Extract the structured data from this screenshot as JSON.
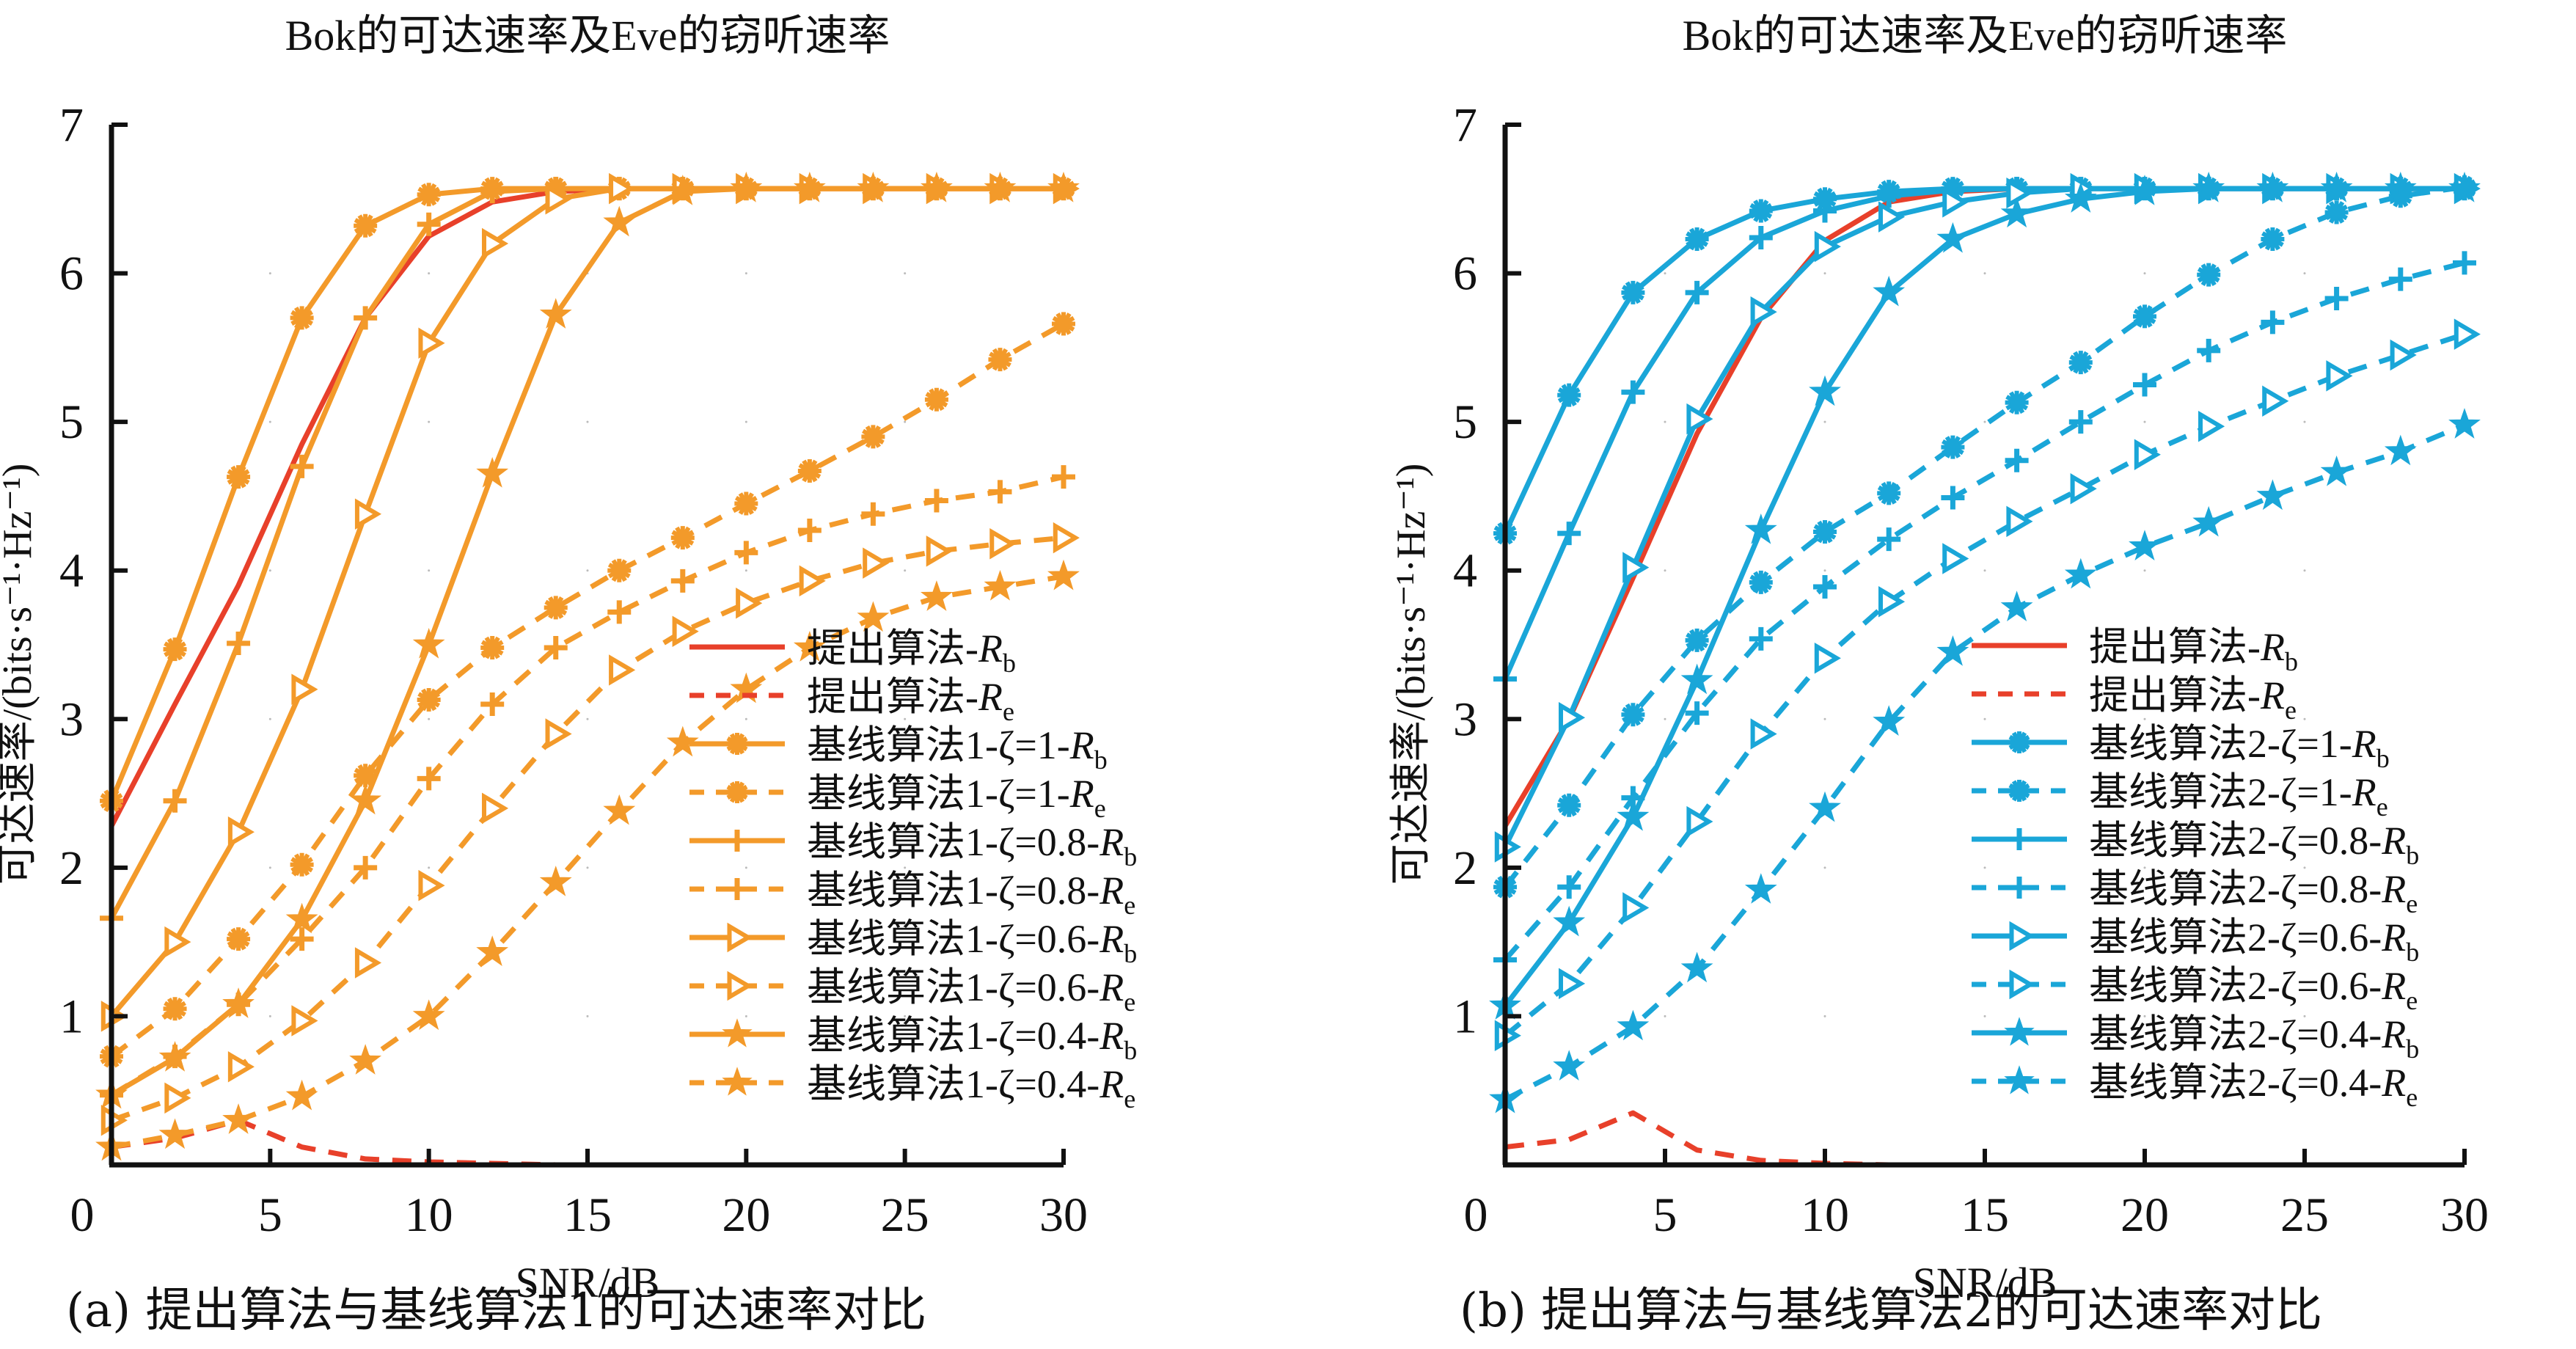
{
  "chart_data": [
    {
      "type": "line",
      "title": "Bok的可达速率及Eve的窃听速率",
      "xlabel": "SNR/dB",
      "ylabel": "可达速率/(bits·s⁻¹·Hz⁻¹)",
      "caption": "(a) 提出算法与基线算法1的可达速率对比",
      "xlim": [
        0,
        30
      ],
      "ylim": [
        0,
        7
      ],
      "xticks": [
        0,
        5,
        10,
        15,
        20,
        25,
        30
      ],
      "yticks": [
        1,
        2,
        3,
        4,
        5,
        6,
        7
      ],
      "ytick_labels": [
        "1",
        "2",
        "3",
        "4",
        "5",
        "6",
        "7"
      ],
      "xtick_labels": [
        "0",
        "5",
        "10",
        "15",
        "20",
        "25",
        "30"
      ],
      "origin_label": "0",
      "grid": "dotted-minor",
      "legend_position": "bottom-right",
      "x": [
        0,
        2,
        4,
        6,
        8,
        10,
        12,
        14,
        16,
        18,
        20,
        22,
        24,
        26,
        28,
        30
      ],
      "series": [
        {
          "name": "提出算法",
          "sub": "b",
          "color": "#e8402a",
          "dashed": false,
          "marker": "none",
          "values": [
            2.28,
            3.1,
            3.9,
            4.85,
            5.7,
            6.25,
            6.48,
            6.55,
            6.57,
            6.57,
            6.57,
            6.57,
            6.57,
            6.57,
            6.57,
            6.57
          ]
        },
        {
          "name": "提出算法",
          "sub": "e",
          "color": "#e8402a",
          "dashed": true,
          "marker": "none",
          "values": [
            0.12,
            0.18,
            0.3,
            0.12,
            0.04,
            0.02,
            0.01,
            0.0,
            0.0,
            0.0,
            0.0,
            0.0,
            0.0,
            0.0,
            0.0,
            0.0
          ]
        },
        {
          "name": "基线算法1-ζ=1",
          "sub": "b",
          "color": "#f39a2a",
          "dashed": false,
          "marker": "asterisk",
          "values": [
            2.45,
            3.47,
            4.63,
            5.7,
            6.32,
            6.53,
            6.57,
            6.57,
            6.57,
            6.57,
            6.57,
            6.57,
            6.57,
            6.57,
            6.57,
            6.57
          ]
        },
        {
          "name": "基线算法1-ζ=1",
          "sub": "e",
          "color": "#f39a2a",
          "dashed": true,
          "marker": "asterisk",
          "values": [
            0.73,
            1.05,
            1.52,
            2.02,
            2.62,
            3.13,
            3.48,
            3.75,
            4.0,
            4.22,
            4.45,
            4.67,
            4.9,
            5.15,
            5.42,
            5.66
          ]
        },
        {
          "name": "基线算法1-ζ=0.8",
          "sub": "b",
          "color": "#f39a2a",
          "dashed": false,
          "marker": "plus",
          "values": [
            1.66,
            2.45,
            3.51,
            4.7,
            5.7,
            6.33,
            6.55,
            6.57,
            6.57,
            6.57,
            6.57,
            6.57,
            6.57,
            6.57,
            6.57,
            6.57
          ]
        },
        {
          "name": "基线算法1-ζ=0.8",
          "sub": "e",
          "color": "#f39a2a",
          "dashed": true,
          "marker": "plus",
          "values": [
            0.47,
            0.73,
            1.08,
            1.52,
            2.0,
            2.6,
            3.1,
            3.48,
            3.72,
            3.93,
            4.12,
            4.27,
            4.38,
            4.47,
            4.53,
            4.63
          ]
        },
        {
          "name": "基线算法1-ζ=0.6",
          "sub": "b",
          "color": "#f39a2a",
          "dashed": false,
          "marker": "triangle-right",
          "values": [
            1.0,
            1.5,
            2.24,
            3.2,
            4.38,
            5.53,
            6.2,
            6.5,
            6.57,
            6.57,
            6.57,
            6.57,
            6.57,
            6.57,
            6.57,
            6.57
          ]
        },
        {
          "name": "基线算法1-ζ=0.6",
          "sub": "e",
          "color": "#f39a2a",
          "dashed": true,
          "marker": "triangle-right",
          "values": [
            0.3,
            0.45,
            0.66,
            0.97,
            1.36,
            1.88,
            2.4,
            2.9,
            3.33,
            3.59,
            3.78,
            3.93,
            4.05,
            4.13,
            4.18,
            4.22
          ]
        },
        {
          "name": "基线算法1-ζ=0.4",
          "sub": "b",
          "color": "#f39a2a",
          "dashed": false,
          "marker": "star",
          "values": [
            0.47,
            0.72,
            1.08,
            1.65,
            2.45,
            3.5,
            4.65,
            5.72,
            6.34,
            6.55,
            6.57,
            6.57,
            6.57,
            6.57,
            6.57,
            6.57
          ]
        },
        {
          "name": "基线算法1-ζ=0.4",
          "sub": "e",
          "color": "#f39a2a",
          "dashed": true,
          "marker": "star",
          "values": [
            0.12,
            0.2,
            0.3,
            0.46,
            0.7,
            1.0,
            1.43,
            1.9,
            2.38,
            2.84,
            3.2,
            3.48,
            3.68,
            3.82,
            3.89,
            3.96
          ]
        }
      ]
    },
    {
      "type": "line",
      "title": "Bok的可达速率及Eve的窃听速率",
      "xlabel": "SNR/dB",
      "ylabel": "可达速率/(bits·s⁻¹·Hz⁻¹)",
      "caption": "(b) 提出算法与基线算法2的可达速率对比",
      "xlim": [
        0,
        30
      ],
      "ylim": [
        0,
        7
      ],
      "xticks": [
        0,
        5,
        10,
        15,
        20,
        25,
        30
      ],
      "yticks": [
        1,
        2,
        3,
        4,
        5,
        6,
        7
      ],
      "ytick_labels": [
        "1",
        "2",
        "3",
        "4",
        "5",
        "6",
        "7"
      ],
      "xtick_labels": [
        "0",
        "5",
        "10",
        "15",
        "20",
        "25",
        "30"
      ],
      "origin_label": "0",
      "grid": "dotted-minor",
      "legend_position": "bottom-right",
      "x": [
        0,
        2,
        4,
        6,
        8,
        10,
        12,
        14,
        16,
        18,
        20,
        22,
        24,
        26,
        28,
        30
      ],
      "series": [
        {
          "name": "提出算法",
          "sub": "b",
          "color": "#e8402a",
          "dashed": false,
          "marker": "none",
          "values": [
            2.28,
            3.0,
            3.95,
            4.92,
            5.7,
            6.22,
            6.48,
            6.55,
            6.57,
            6.57,
            6.57,
            6.57,
            6.57,
            6.57,
            6.57,
            6.57
          ]
        },
        {
          "name": "提出算法",
          "sub": "e",
          "color": "#e8402a",
          "dashed": true,
          "marker": "none",
          "values": [
            0.12,
            0.17,
            0.35,
            0.1,
            0.03,
            0.01,
            0.0,
            0.0,
            0.0,
            0.0,
            0.0,
            0.0,
            0.0,
            0.0,
            0.0,
            0.0
          ]
        },
        {
          "name": "基线算法2-ζ=1",
          "sub": "b",
          "color": "#1aa6d8",
          "dashed": false,
          "marker": "asterisk",
          "values": [
            4.25,
            5.18,
            5.87,
            6.23,
            6.42,
            6.5,
            6.55,
            6.57,
            6.57,
            6.57,
            6.57,
            6.57,
            6.57,
            6.57,
            6.57,
            6.57
          ]
        },
        {
          "name": "基线算法2-ζ=1",
          "sub": "e",
          "color": "#1aa6d8",
          "dashed": true,
          "marker": "asterisk",
          "values": [
            1.87,
            2.42,
            3.03,
            3.53,
            3.92,
            4.26,
            4.52,
            4.83,
            5.13,
            5.4,
            5.71,
            5.99,
            6.23,
            6.41,
            6.52,
            6.58
          ]
        },
        {
          "name": "基线算法2-ζ=0.8",
          "sub": "b",
          "color": "#1aa6d8",
          "dashed": false,
          "marker": "plus",
          "values": [
            3.27,
            4.25,
            5.2,
            5.87,
            6.24,
            6.42,
            6.52,
            6.56,
            6.57,
            6.57,
            6.57,
            6.57,
            6.57,
            6.57,
            6.57,
            6.57
          ]
        },
        {
          "name": "基线算法2-ζ=0.8",
          "sub": "e",
          "color": "#1aa6d8",
          "dashed": true,
          "marker": "plus",
          "values": [
            1.38,
            1.87,
            2.47,
            3.04,
            3.54,
            3.89,
            4.21,
            4.49,
            4.74,
            5.0,
            5.25,
            5.48,
            5.67,
            5.83,
            5.96,
            6.07
          ]
        },
        {
          "name": "基线算法2-ζ=0.6",
          "sub": "b",
          "color": "#1aa6d8",
          "dashed": false,
          "marker": "triangle-right",
          "values": [
            2.14,
            3.01,
            4.02,
            5.02,
            5.74,
            6.18,
            6.38,
            6.48,
            6.54,
            6.57,
            6.57,
            6.57,
            6.57,
            6.57,
            6.57,
            6.57
          ]
        },
        {
          "name": "基线算法2-ζ=0.6",
          "sub": "e",
          "color": "#1aa6d8",
          "dashed": true,
          "marker": "triangle-right",
          "values": [
            0.87,
            1.22,
            1.73,
            2.31,
            2.9,
            3.41,
            3.79,
            4.08,
            4.33,
            4.55,
            4.78,
            4.97,
            5.14,
            5.31,
            5.45,
            5.59
          ]
        },
        {
          "name": "基线算法2-ζ=0.4",
          "sub": "b",
          "color": "#1aa6d8",
          "dashed": false,
          "marker": "star",
          "values": [
            1.07,
            1.63,
            2.34,
            3.26,
            4.27,
            5.2,
            5.87,
            6.23,
            6.4,
            6.5,
            6.55,
            6.57,
            6.57,
            6.57,
            6.57,
            6.57
          ]
        },
        {
          "name": "基线算法2-ζ=0.4",
          "sub": "e",
          "color": "#1aa6d8",
          "dashed": true,
          "marker": "star",
          "values": [
            0.44,
            0.66,
            0.93,
            1.32,
            1.85,
            2.4,
            2.98,
            3.45,
            3.75,
            3.97,
            4.16,
            4.32,
            4.5,
            4.66,
            4.8,
            4.98
          ]
        }
      ]
    }
  ]
}
